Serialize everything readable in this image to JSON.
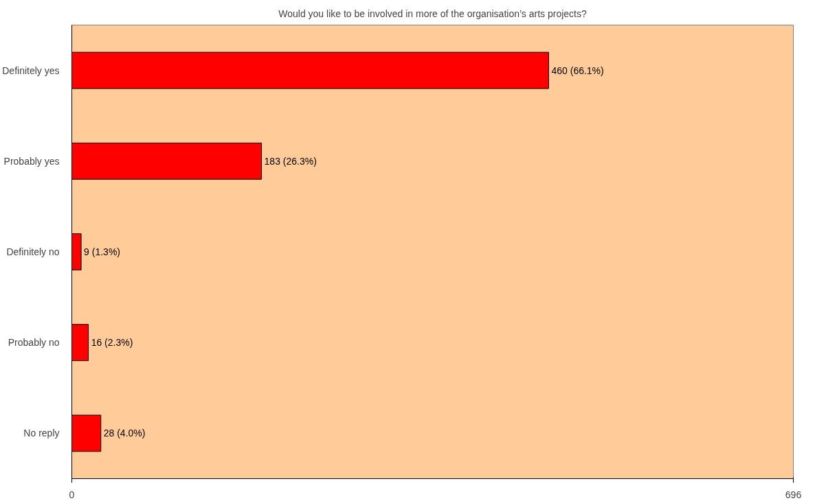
{
  "chart_data": {
    "type": "bar",
    "orientation": "horizontal",
    "title": "Would you like to be involved in more of the organisation’s arts projects?",
    "categories": [
      "Definitely yes",
      "Probably yes",
      "Definitely no",
      "Probably no",
      "No reply"
    ],
    "values": [
      460,
      183,
      9,
      16,
      28
    ],
    "value_labels": [
      "460  (66.1%)",
      "183  (26.3%)",
      "9  (1.3%)",
      "16  (2.3%)",
      "28  (4.0%)"
    ],
    "color": "#ff0000",
    "xlim": [
      0,
      696
    ],
    "xticks": [
      0,
      696
    ]
  }
}
